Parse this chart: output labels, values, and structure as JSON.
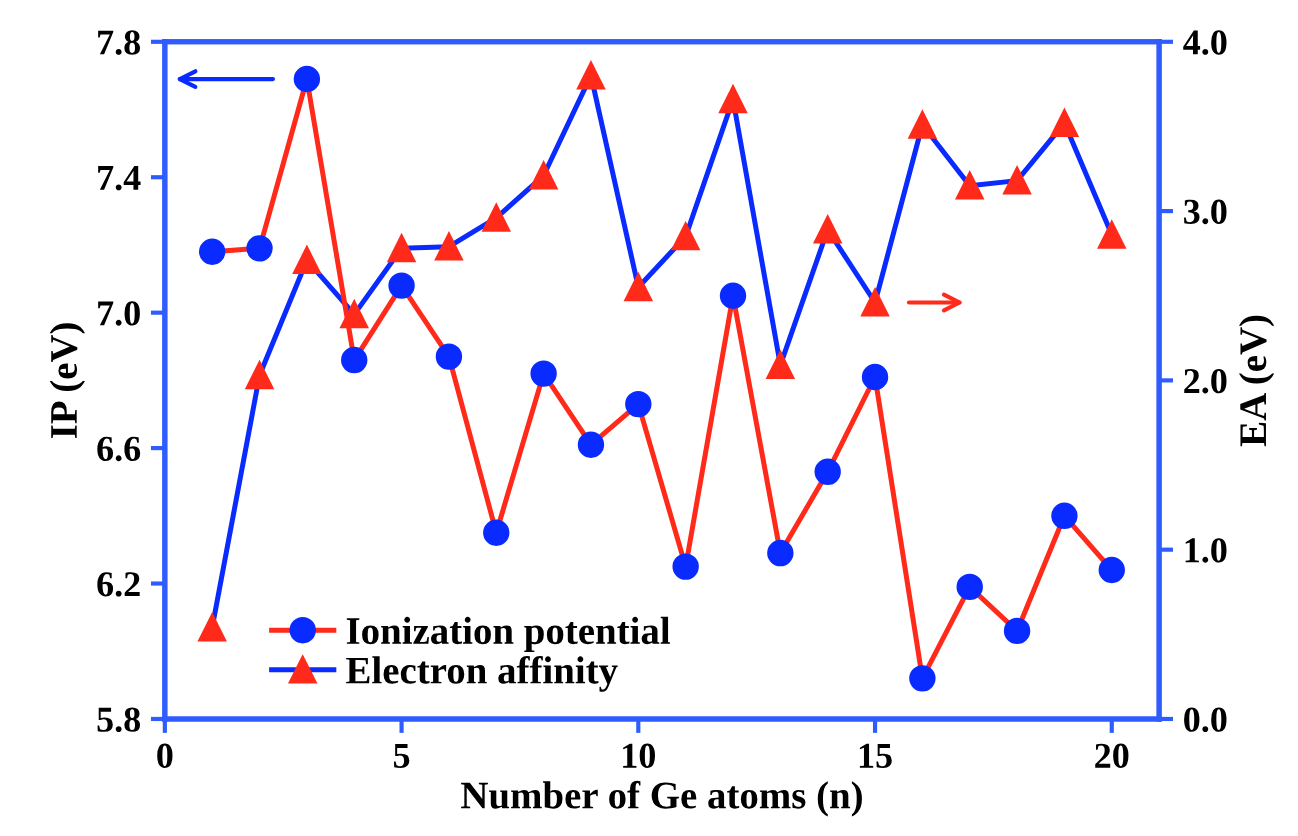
{
  "chart_data": {
    "type": "line",
    "xlabel": "Number of Ge atoms (n)",
    "ylabel": "IP (eV)",
    "y2label": "EA (eV)",
    "x": [
      1,
      2,
      3,
      4,
      5,
      6,
      7,
      8,
      9,
      10,
      11,
      12,
      13,
      14,
      15,
      16,
      17,
      18,
      19,
      20
    ],
    "series": [
      {
        "name": "Ionization potential",
        "color": "#0a2bff",
        "marker": "circle",
        "values": [
          7.18,
          7.19,
          7.69,
          6.86,
          7.08,
          6.87,
          6.35,
          6.82,
          6.61,
          6.73,
          6.25,
          7.05,
          6.29,
          6.53,
          6.81,
          5.92,
          6.19,
          6.06,
          6.4,
          6.24
        ]
      },
      {
        "name": "Electron affinity",
        "color": "#ff2a1a",
        "marker": "triangle",
        "axis": "y2",
        "values": [
          0.54,
          2.03,
          2.71,
          2.39,
          2.78,
          2.79,
          2.96,
          3.21,
          3.8,
          2.55,
          2.85,
          3.66,
          2.09,
          2.89,
          2.46,
          3.51,
          3.15,
          3.18,
          3.52,
          2.86
        ]
      }
    ],
    "xlim": [
      0,
      21
    ],
    "xticks": [
      0,
      5,
      10,
      15,
      20
    ],
    "ylim": [
      5.8,
      7.8
    ],
    "yticks": [
      {
        "value": 5.8,
        "label": "5.8"
      },
      {
        "value": 6.2,
        "label": "6.2"
      },
      {
        "value": 6.6,
        "label": "6.6"
      },
      {
        "value": 7.0,
        "label": "7.0"
      },
      {
        "value": 7.4,
        "label": "7.4"
      },
      {
        "value": 7.8,
        "label": "7.8"
      }
    ],
    "y2lim": [
      0,
      4
    ],
    "y2ticks": [
      {
        "value": 0,
        "label": "0.0"
      },
      {
        "value": 1,
        "label": "1.0"
      },
      {
        "value": 2,
        "label": "2.0"
      },
      {
        "value": 3,
        "label": "3.0"
      },
      {
        "value": 4,
        "label": "4.0"
      }
    ],
    "legend": "bottom left",
    "grid": false
  }
}
